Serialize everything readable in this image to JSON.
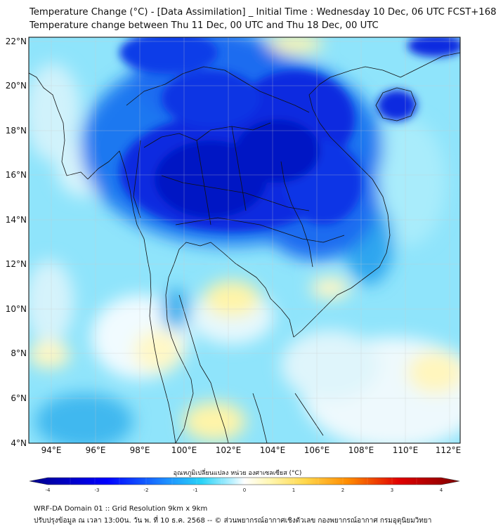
{
  "header": {
    "title_line1": "Temperature Change (°C) - [Data Assimilation] _ Initial Time : Wednesday 10 Dec, 06 UTC FCST+168",
    "title_line2": "Temperature change between Thu 11 Dec, 00 UTC and Thu 18 Dec, 00 UTC"
  },
  "axes": {
    "lat_labels": [
      "22°N",
      "20°N",
      "18°N",
      "16°N",
      "14°N",
      "12°N",
      "10°N",
      "8°N",
      "6°N",
      "4°N"
    ],
    "lon_labels": [
      "94°E",
      "96°E",
      "98°E",
      "100°E",
      "102°E",
      "104°E",
      "106°E",
      "108°E",
      "110°E",
      "112°E"
    ],
    "lat_range": [
      4,
      22
    ],
    "lon_range": [
      93,
      112.5
    ]
  },
  "colorbar": {
    "label": "อุณหภูมิเปลี่ยนแปลง หน่วย องศาเซลเซียส (°C)",
    "ticks": [
      "-4",
      "-3",
      "-2",
      "-1",
      "0",
      "1",
      "2",
      "3",
      "4"
    ],
    "min": -4,
    "max": 4,
    "colors": {
      "deep_blue": "#00008b",
      "blue": "#0000ff",
      "sky": "#29b6f6",
      "cyan": "#7fe3ff",
      "light": "#e0f7ff",
      "white": "#ffffff",
      "pale_yellow": "#fff9c4",
      "yellow": "#ffe066",
      "orange": "#ff8c00",
      "red": "#e00000",
      "dark_red": "#800000"
    }
  },
  "footer": {
    "line1": "WRF-DA Domain 01 :: Grid Resolution 9km x 9km",
    "line2": "ปรับปรุงข้อมูล ณ เวลา 13:00น. วัน พ. ที่ 10 ธ.ค. 2568 -- © ส่วนพยากรณ์อากาศเชิงตัวเลข กองพยากรณ์อากาศ กรมอุตุนิยมวิทยา"
  }
}
